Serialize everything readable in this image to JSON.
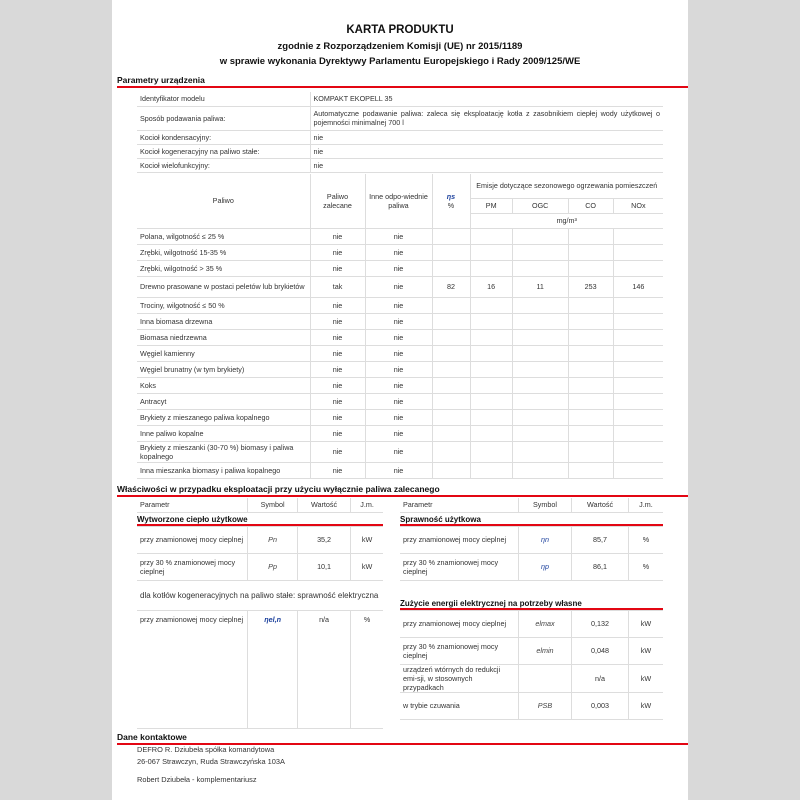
{
  "title": "KARTA PRODUKTU",
  "subtitle1": "zgodnie z Rozporządzeniem Komisji (UE) nr 2015/1189",
  "subtitle2": "w sprawie wykonania Dyrektywy Parlamentu Europejskiego i Rady 2009/125/WE",
  "params": {
    "heading": "Parametry urządzenia",
    "rows": [
      {
        "label": "Identyfikator modelu",
        "value": "KOMPAKT EKOPELL 35"
      },
      {
        "label": "Sposób podawania paliwa:",
        "value": "Automatyczne podawanie paliwa: zaleca się eksploatację kotła z zasobnikiem ciepłej wody użytkowej o pojemności minimalnej 700 l"
      },
      {
        "label": "Kocioł kondensacyjny:",
        "value": "nie"
      },
      {
        "label": "Kocioł kogeneracyjny na paliwo stałe:",
        "value": "nie"
      },
      {
        "label": "Kocioł wielofunkcyjny:",
        "value": "nie"
      }
    ]
  },
  "fuel": {
    "headers": {
      "fuel": "Paliwo",
      "recommended": "Paliwo zalecane",
      "other": "Inne odpo-wiednie paliwa",
      "eta": "ηs",
      "percent": "%",
      "emissions": "Emisje dotyczące sezonowego ogrzewania pomieszczeń",
      "pm": "PM",
      "ogc": "OGC",
      "co": "CO",
      "nox": "NOx",
      "unit": "mg/m³"
    },
    "rows": [
      {
        "name": "Polana, wilgotność ≤ 25 %",
        "rec": "nie",
        "other": "nie",
        "eta": "",
        "pm": "",
        "ogc": "",
        "co": "",
        "nox": ""
      },
      {
        "name": "Zrębki, wilgotność 15-35 %",
        "rec": "nie",
        "other": "nie",
        "eta": "",
        "pm": "",
        "ogc": "",
        "co": "",
        "nox": ""
      },
      {
        "name": "Zrębki, wilgotność > 35 %",
        "rec": "nie",
        "other": "nie",
        "eta": "",
        "pm": "",
        "ogc": "",
        "co": "",
        "nox": ""
      },
      {
        "name": "Drewno prasowane w postaci peletów lub brykietów",
        "rec": "tak",
        "other": "nie",
        "eta": "82",
        "pm": "16",
        "ogc": "11",
        "co": "253",
        "nox": "146"
      },
      {
        "name": "Trociny, wilgotność ≤ 50 %",
        "rec": "nie",
        "other": "nie",
        "eta": "",
        "pm": "",
        "ogc": "",
        "co": "",
        "nox": ""
      },
      {
        "name": "Inna biomasa drzewna",
        "rec": "nie",
        "other": "nie",
        "eta": "",
        "pm": "",
        "ogc": "",
        "co": "",
        "nox": ""
      },
      {
        "name": "Biomasa niedrzewna",
        "rec": "nie",
        "other": "nie",
        "eta": "",
        "pm": "",
        "ogc": "",
        "co": "",
        "nox": ""
      },
      {
        "name": "Węgiel kamienny",
        "rec": "nie",
        "other": "nie",
        "eta": "",
        "pm": "",
        "ogc": "",
        "co": "",
        "nox": ""
      },
      {
        "name": "Węgiel brunatny (w tym brykiety)",
        "rec": "nie",
        "other": "nie",
        "eta": "",
        "pm": "",
        "ogc": "",
        "co": "",
        "nox": ""
      },
      {
        "name": "Koks",
        "rec": "nie",
        "other": "nie",
        "eta": "",
        "pm": "",
        "ogc": "",
        "co": "",
        "nox": ""
      },
      {
        "name": "Antracyt",
        "rec": "nie",
        "other": "nie",
        "eta": "",
        "pm": "",
        "ogc": "",
        "co": "",
        "nox": ""
      },
      {
        "name": "Brykiety z mieszanego paliwa kopalnego",
        "rec": "nie",
        "other": "nie",
        "eta": "",
        "pm": "",
        "ogc": "",
        "co": "",
        "nox": ""
      },
      {
        "name": "Inne paliwo kopalne",
        "rec": "nie",
        "other": "nie",
        "eta": "",
        "pm": "",
        "ogc": "",
        "co": "",
        "nox": ""
      },
      {
        "name": "Brykiety z mieszanki (30-70 %) biomasy i paliwa kopalnego",
        "rec": "nie",
        "other": "nie",
        "eta": "",
        "pm": "",
        "ogc": "",
        "co": "",
        "nox": ""
      },
      {
        "name": "Inna mieszanka biomasy i paliwa kopalnego",
        "rec": "nie",
        "other": "nie",
        "eta": "",
        "pm": "",
        "ogc": "",
        "co": "",
        "nox": ""
      }
    ]
  },
  "props": {
    "heading": "Właściwości w przypadku eksploatacji przy użyciu wyłącznie paliwa zalecanego",
    "cols": {
      "param": "Parametr",
      "symbol": "Symbol",
      "value": "Wartość",
      "unit": "J.m."
    },
    "heat": {
      "title": "Wytworzone ciepło użytkowe",
      "rows": [
        {
          "label": "przy znamionowej mocy cieplnej",
          "symbol": "Pn",
          "value": "35,2",
          "unit": "kW"
        },
        {
          "label": "przy 30 % znamionowej mocy cieplnej",
          "symbol": "Pp",
          "value": "10,1",
          "unit": "kW"
        }
      ]
    },
    "cogen": {
      "title": "dla kotłów kogeneracyjnych na paliwo stałe: sprawność elektryczna",
      "rows": [
        {
          "label": "przy znamionowej mocy cieplnej",
          "symbol": "ηel,n",
          "value": "n/a",
          "unit": "%"
        }
      ]
    },
    "eff": {
      "title": "Sprawność użytkowa",
      "rows": [
        {
          "label": "przy znamionowej mocy cieplnej",
          "symbol": "ηn",
          "value": "85,7",
          "unit": "%"
        },
        {
          "label": "przy 30 % znamionowej mocy cieplnej",
          "symbol": "ηp",
          "value": "86,1",
          "unit": "%"
        }
      ]
    },
    "elec": {
      "title": "Zużycie energii elektrycznej na potrzeby własne",
      "rows": [
        {
          "label": "przy znamionowej mocy cieplnej",
          "symbol": "elmax",
          "value": "0,132",
          "unit": "kW"
        },
        {
          "label": "przy 30 % znamionowej mocy cieplnej",
          "symbol": "elmin",
          "value": "0,048",
          "unit": "kW"
        },
        {
          "label": "urządzeń wtórnych do redukcji emi-sji, w stosownych przypadkach",
          "symbol": "",
          "value": "n/a",
          "unit": "kW"
        },
        {
          "label": "w trybie czuwania",
          "symbol": "PSB",
          "value": "0,003",
          "unit": "kW"
        }
      ]
    }
  },
  "contact": {
    "heading": "Dane kontaktowe",
    "line1": "DEFRO R. Dziubeła spółka komandytowa",
    "line2": "26-067 Strawczyn, Ruda Strawczyńska 103A",
    "line3": "Robert Dziubeła - komplementariusz"
  }
}
